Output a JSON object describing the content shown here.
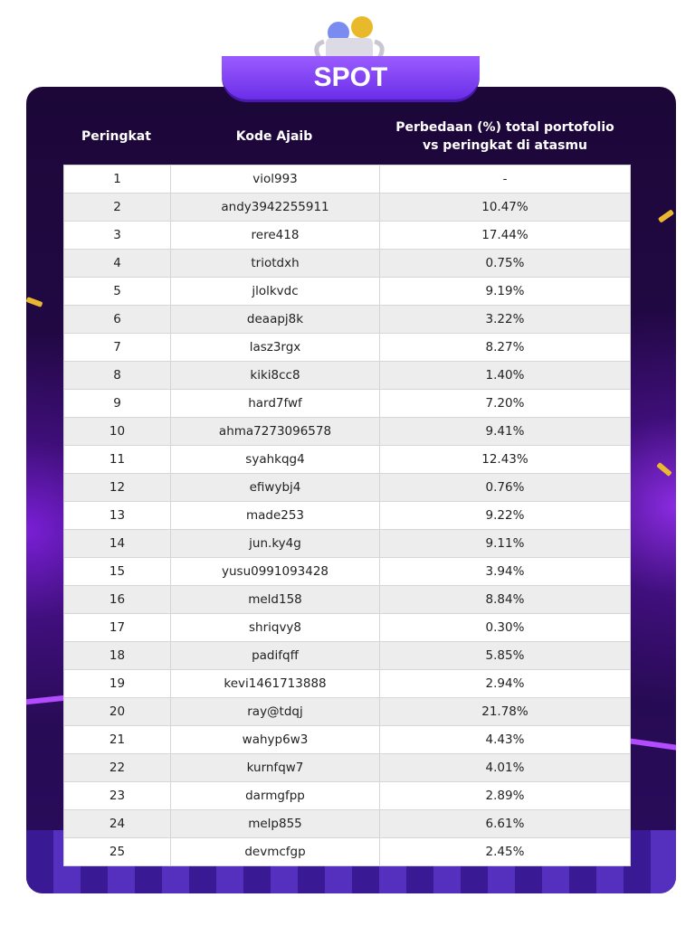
{
  "badge": {
    "title": "SPOT"
  },
  "table": {
    "headers": [
      "Peringkat",
      "Kode Ajaib",
      "Perbedaan (%) total portofolio vs peringkat di atasmu"
    ],
    "rows": [
      [
        "1",
        "viol993",
        "-"
      ],
      [
        "2",
        "andy3942255911",
        "10.47%"
      ],
      [
        "3",
        "rere418",
        "17.44%"
      ],
      [
        "4",
        "triotdxh",
        "0.75%"
      ],
      [
        "5",
        "jlolkvdc",
        "9.19%"
      ],
      [
        "6",
        "deaapj8k",
        "3.22%"
      ],
      [
        "7",
        "lasz3rgx",
        "8.27%"
      ],
      [
        "8",
        "kiki8cc8",
        "1.40%"
      ],
      [
        "9",
        "hard7fwf",
        "7.20%"
      ],
      [
        "10",
        "ahma7273096578",
        "9.41%"
      ],
      [
        "11",
        "syahkqg4",
        "12.43%"
      ],
      [
        "12",
        "efiwybj4",
        "0.76%"
      ],
      [
        "13",
        "made253",
        "9.22%"
      ],
      [
        "14",
        "jun.ky4g",
        "9.11%"
      ],
      [
        "15",
        "yusu0991093428",
        "3.94%"
      ],
      [
        "16",
        "meld158",
        "8.84%"
      ],
      [
        "17",
        "shriqvy8",
        "0.30%"
      ],
      [
        "18",
        "padifqff",
        "5.85%"
      ],
      [
        "19",
        "kevi1461713888",
        "2.94%"
      ],
      [
        "20",
        "ray@tdqj",
        "21.78%"
      ],
      [
        "21",
        "wahyp6w3",
        "4.43%"
      ],
      [
        "22",
        "kurnfqw7",
        "4.01%"
      ],
      [
        "23",
        "darmgfpp",
        "2.89%"
      ],
      [
        "24",
        "melp855",
        "6.61%"
      ],
      [
        "25",
        "devmcfgp",
        "2.45%"
      ]
    ]
  },
  "colors": {
    "card_bg": "#1e0a3c",
    "badge": "#7c3aed",
    "row_alt": "#ededed",
    "accent_gold": "#e9b830"
  },
  "icons": [
    "trophy-icon",
    "confetti-icon"
  ]
}
